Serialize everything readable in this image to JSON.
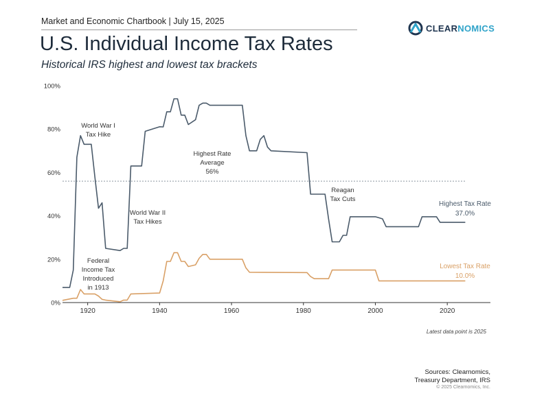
{
  "header": {
    "label": "Market and Economic Chartbook | July 15, 2025",
    "logo_prefix": "CLEAR",
    "logo_suffix": "NOMICS",
    "brand_color": "#2fa3c9"
  },
  "title": "U.S. Individual Income Tax Rates",
  "subtitle": "Historical IRS highest and lowest tax brackets",
  "chart_data": {
    "type": "line",
    "xlim": [
      1913,
      2032
    ],
    "ylim": [
      0,
      100
    ],
    "x_ticks": [
      1920,
      1940,
      1960,
      1980,
      2000,
      2020
    ],
    "y_ticks": [
      {
        "value": 0,
        "label": "0%"
      },
      {
        "value": 20,
        "label": "20%"
      },
      {
        "value": 40,
        "label": "40%"
      },
      {
        "value": 60,
        "label": "60%"
      },
      {
        "value": 80,
        "label": "80%"
      },
      {
        "value": 100,
        "label": "100%"
      }
    ],
    "grid": false,
    "series": [
      {
        "name": "Highest Tax Rate",
        "color": "#4a5a6a",
        "end_value_label": "37.0%",
        "points": [
          [
            1913,
            7
          ],
          [
            1915,
            7
          ],
          [
            1916,
            15
          ],
          [
            1917,
            67
          ],
          [
            1918,
            77
          ],
          [
            1919,
            73
          ],
          [
            1921,
            73
          ],
          [
            1922,
            58
          ],
          [
            1923,
            43.5
          ],
          [
            1924,
            46
          ],
          [
            1925,
            25
          ],
          [
            1929,
            24
          ],
          [
            1930,
            25
          ],
          [
            1931,
            25
          ],
          [
            1932,
            63
          ],
          [
            1935,
            63
          ],
          [
            1936,
            79
          ],
          [
            1940,
            81.1
          ],
          [
            1941,
            81
          ],
          [
            1942,
            88
          ],
          [
            1943,
            88
          ],
          [
            1944,
            94
          ],
          [
            1945,
            94
          ],
          [
            1946,
            86.45
          ],
          [
            1947,
            86.45
          ],
          [
            1948,
            82.13
          ],
          [
            1950,
            84.36
          ],
          [
            1951,
            91
          ],
          [
            1952,
            92
          ],
          [
            1953,
            92
          ],
          [
            1954,
            91
          ],
          [
            1963,
            91
          ],
          [
            1964,
            77
          ],
          [
            1965,
            70
          ],
          [
            1967,
            70
          ],
          [
            1968,
            75.25
          ],
          [
            1969,
            77
          ],
          [
            1970,
            71.75
          ],
          [
            1971,
            70
          ],
          [
            1981,
            69.13
          ],
          [
            1982,
            50
          ],
          [
            1986,
            50
          ],
          [
            1987,
            38.5
          ],
          [
            1988,
            28
          ],
          [
            1990,
            28
          ],
          [
            1991,
            31
          ],
          [
            1992,
            31
          ],
          [
            1993,
            39.6
          ],
          [
            2000,
            39.6
          ],
          [
            2001,
            39.1
          ],
          [
            2002,
            38.6
          ],
          [
            2003,
            35
          ],
          [
            2012,
            35
          ],
          [
            2013,
            39.6
          ],
          [
            2017,
            39.6
          ],
          [
            2018,
            37
          ],
          [
            2025,
            37
          ]
        ]
      },
      {
        "name": "Lowest Tax Rate",
        "color": "#d9a066",
        "end_value_label": "10.0%",
        "points": [
          [
            1913,
            1
          ],
          [
            1916,
            2
          ],
          [
            1917,
            2
          ],
          [
            1918,
            6
          ],
          [
            1919,
            4
          ],
          [
            1922,
            4
          ],
          [
            1923,
            3
          ],
          [
            1924,
            1.5
          ],
          [
            1925,
            1.125
          ],
          [
            1929,
            0.375
          ],
          [
            1930,
            1.125
          ],
          [
            1931,
            1.125
          ],
          [
            1932,
            4
          ],
          [
            1940,
            4.4
          ],
          [
            1941,
            10
          ],
          [
            1942,
            19
          ],
          [
            1943,
            19
          ],
          [
            1944,
            23
          ],
          [
            1945,
            23
          ],
          [
            1946,
            19
          ],
          [
            1947,
            19
          ],
          [
            1948,
            16.6
          ],
          [
            1950,
            17.4
          ],
          [
            1951,
            20.4
          ],
          [
            1952,
            22.2
          ],
          [
            1953,
            22.2
          ],
          [
            1954,
            20
          ],
          [
            1963,
            20
          ],
          [
            1964,
            16
          ],
          [
            1965,
            14
          ],
          [
            1981,
            13.825
          ],
          [
            1982,
            12
          ],
          [
            1983,
            11
          ],
          [
            1987,
            11
          ],
          [
            1988,
            15
          ],
          [
            2000,
            15
          ],
          [
            2001,
            10
          ],
          [
            2025,
            10
          ]
        ]
      }
    ],
    "reference_line": {
      "value": 56,
      "style": "dotted"
    },
    "annotations": [
      {
        "id": "ww1",
        "lines": [
          "World War I",
          "Tax Hike"
        ]
      },
      {
        "id": "ww2",
        "lines": [
          "World War II",
          "Tax Hikes"
        ]
      },
      {
        "id": "federal",
        "lines": [
          "Federal",
          "Income Tax",
          "Introduced",
          "in 1913"
        ]
      },
      {
        "id": "avg",
        "lines": [
          "Highest Rate",
          "Average",
          "56%"
        ]
      },
      {
        "id": "reagan",
        "lines": [
          "Reagan",
          "Tax Cuts"
        ]
      }
    ]
  },
  "footer": {
    "note": "Latest data point is 2025",
    "sources_line1": "Sources: Clearnomics,",
    "sources_line2": "Treasury Department, IRS",
    "copyright": "© 2025 Clearnomics, Inc."
  }
}
